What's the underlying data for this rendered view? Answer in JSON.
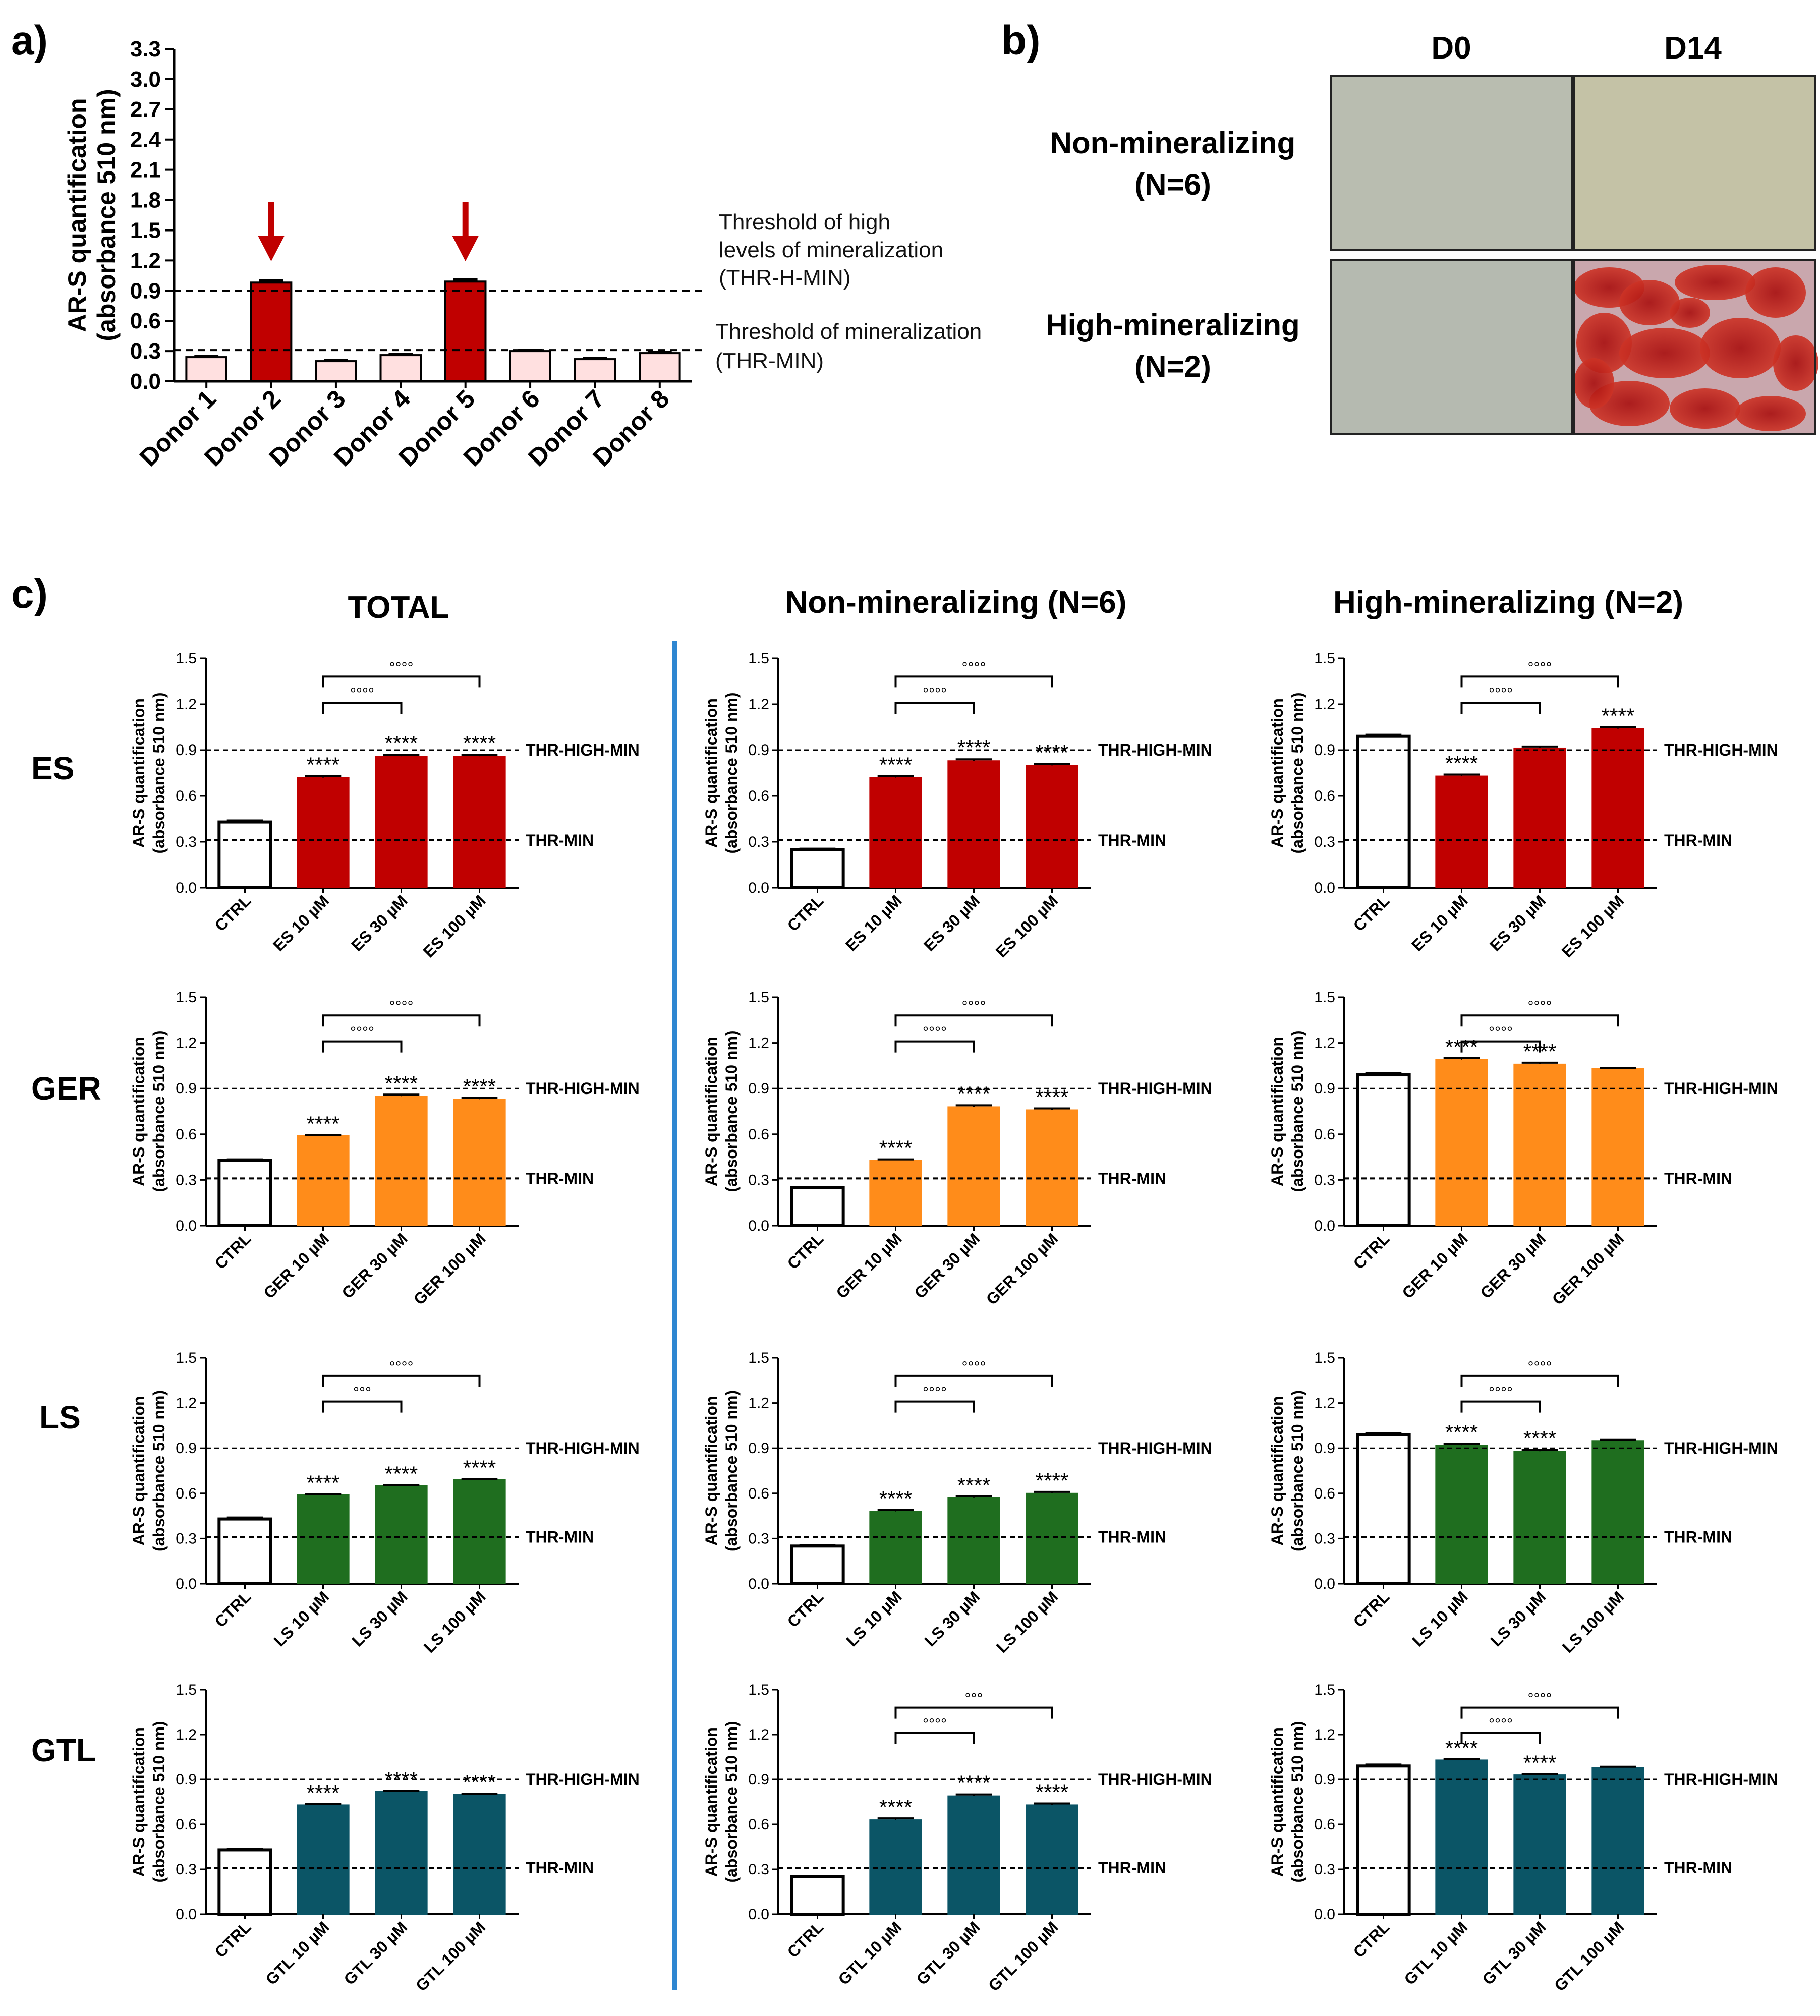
{
  "panel_labels": {
    "a": "a)",
    "b": "b)",
    "c": "c)"
  },
  "colors": {
    "ES": "#c00000",
    "GER": "#ff8c1a",
    "LS": "#1f6e1f",
    "GTL": "#0b5566",
    "donor_high": "#c00000",
    "donor_low": "#ffe0e0",
    "arrow": "#c00000",
    "divider": "#2e86d1"
  },
  "panel_b": {
    "col_headers": [
      "D0",
      "D14"
    ],
    "row_labels": [
      {
        "line1": "Non-mineralizing",
        "line2": "(N=6)"
      },
      {
        "line1": "High-mineralizing",
        "line2": "(N=2)"
      }
    ]
  },
  "panel_c": {
    "column_titles": [
      "TOTAL",
      "Non-mineralizing (N=6)",
      "High-mineralizing (N=2)"
    ],
    "row_labels": [
      "ES",
      "GER",
      "LS",
      "GTL"
    ]
  },
  "chart_data": [
    {
      "id": "a",
      "type": "bar",
      "title": "",
      "ylabel_line1": "AR-S quantification",
      "ylabel_line2": "(absorbance 510 nm)",
      "ylim": [
        0,
        3.3
      ],
      "yticks": [
        "0.0",
        "0.3",
        "0.6",
        "0.9",
        "1.2",
        "1.5",
        "1.8",
        "2.1",
        "2.4",
        "2.7",
        "3.0",
        "3.3"
      ],
      "categories": [
        "Donor 1",
        "Donor 2",
        "Donor 3",
        "Donor 4",
        "Donor 5",
        "Donor 6",
        "Donor 7",
        "Donor 8"
      ],
      "values": [
        0.24,
        0.98,
        0.2,
        0.26,
        0.99,
        0.3,
        0.22,
        0.28
      ],
      "errors": [
        0.01,
        0.02,
        0.01,
        0.01,
        0.02,
        0.01,
        0.01,
        0.01
      ],
      "highlight": [
        false,
        true,
        false,
        false,
        true,
        false,
        false,
        false
      ],
      "arrows_on": [
        "Donor 2",
        "Donor 5"
      ],
      "thresholds": [
        {
          "value": 0.9,
          "lines": [
            "Threshold of high",
            "levels of mineralization",
            "(THR-H-MIN)"
          ]
        },
        {
          "value": 0.31,
          "lines": [
            "Threshold of mineralization",
            "(THR-MIN)"
          ]
        }
      ]
    },
    {
      "id": "es-total",
      "type": "bar",
      "group": "ES",
      "ylabel_line1": "AR-S quantification",
      "ylabel_line2": "(absorbance 510 nm)",
      "ylim": [
        0,
        1.5
      ],
      "yticks": [
        "0.0",
        "0.3",
        "0.6",
        "0.9",
        "1.2",
        "1.5"
      ],
      "categories": [
        "CTRL",
        "ES 10 µM",
        "ES 30 µM",
        "ES 100 µM"
      ],
      "values": [
        0.43,
        0.72,
        0.86,
        0.86
      ],
      "errors": [
        0.01,
        0.01,
        0.01,
        0.01
      ],
      "stars": [
        "",
        "****",
        "****",
        "****"
      ],
      "brackets": [
        {
          "from": 1,
          "to": 2,
          "label": "°°°°"
        },
        {
          "from": 1,
          "to": 3,
          "label": "°°°°"
        }
      ],
      "thresholds": [
        {
          "value": 0.9,
          "label": "THR-HIGH-MIN"
        },
        {
          "value": 0.31,
          "label": "THR-MIN"
        }
      ]
    },
    {
      "id": "es-non",
      "type": "bar",
      "group": "ES",
      "ylabel_line1": "AR-S quantification",
      "ylabel_line2": "(absorbance 510 nm)",
      "ylim": [
        0,
        1.5
      ],
      "yticks": [
        "0.0",
        "0.3",
        "0.6",
        "0.9",
        "1.2",
        "1.5"
      ],
      "categories": [
        "CTRL",
        "ES 10 µM",
        "ES 30 µM",
        "ES 100 µM"
      ],
      "values": [
        0.25,
        0.72,
        0.83,
        0.8
      ],
      "errors": [
        0.005,
        0.01,
        0.01,
        0.01
      ],
      "stars": [
        "",
        "****",
        "****",
        "****"
      ],
      "brackets": [
        {
          "from": 1,
          "to": 2,
          "label": "°°°°"
        },
        {
          "from": 1,
          "to": 3,
          "label": "°°°°"
        }
      ],
      "thresholds": [
        {
          "value": 0.9,
          "label": "THR-HIGH-MIN"
        },
        {
          "value": 0.31,
          "label": "THR-MIN"
        }
      ]
    },
    {
      "id": "es-high",
      "type": "bar",
      "group": "ES",
      "ylabel_line1": "AR-S quantification",
      "ylabel_line2": "(absorbance 510 nm)",
      "ylim": [
        0,
        1.5
      ],
      "yticks": [
        "0.0",
        "0.3",
        "0.6",
        "0.9",
        "1.2",
        "1.5"
      ],
      "categories": [
        "CTRL",
        "ES 10 µM",
        "ES 30 µM",
        "ES 100 µM"
      ],
      "values": [
        0.99,
        0.73,
        0.91,
        1.04
      ],
      "errors": [
        0.01,
        0.01,
        0.01,
        0.01
      ],
      "stars": [
        "",
        "****",
        "",
        "****"
      ],
      "brackets": [
        {
          "from": 1,
          "to": 2,
          "label": "°°°°"
        },
        {
          "from": 1,
          "to": 3,
          "label": "°°°°"
        }
      ],
      "thresholds": [
        {
          "value": 0.9,
          "label": "THR-HIGH-MIN"
        },
        {
          "value": 0.31,
          "label": "THR-MIN"
        }
      ]
    },
    {
      "id": "ger-total",
      "type": "bar",
      "group": "GER",
      "ylabel_line1": "AR-S quantification",
      "ylabel_line2": "(absorbance 510 nm)",
      "ylim": [
        0,
        1.5
      ],
      "yticks": [
        "0.0",
        "0.3",
        "0.6",
        "0.9",
        "1.2",
        "1.5"
      ],
      "categories": [
        "CTRL",
        "GER 10 µM",
        "GER 30 µM",
        "GER 100 µM"
      ],
      "values": [
        0.43,
        0.59,
        0.85,
        0.83
      ],
      "errors": [
        0.005,
        0.005,
        0.01,
        0.01
      ],
      "stars": [
        "",
        "****",
        "****",
        "****"
      ],
      "brackets": [
        {
          "from": 1,
          "to": 2,
          "label": "°°°°"
        },
        {
          "from": 1,
          "to": 3,
          "label": "°°°°"
        }
      ],
      "thresholds": [
        {
          "value": 0.9,
          "label": "THR-HIGH-MIN"
        },
        {
          "value": 0.31,
          "label": "THR-MIN"
        }
      ]
    },
    {
      "id": "ger-non",
      "type": "bar",
      "group": "GER",
      "ylabel_line1": "AR-S quantification",
      "ylabel_line2": "(absorbance 510 nm)",
      "ylim": [
        0,
        1.5
      ],
      "yticks": [
        "0.0",
        "0.3",
        "0.6",
        "0.9",
        "1.2",
        "1.5"
      ],
      "categories": [
        "CTRL",
        "GER 10 µM",
        "GER 30 µM",
        "GER 100 µM"
      ],
      "values": [
        0.25,
        0.43,
        0.78,
        0.76
      ],
      "errors": [
        0.005,
        0.005,
        0.01,
        0.01
      ],
      "stars": [
        "",
        "****",
        "****",
        "****"
      ],
      "brackets": [
        {
          "from": 1,
          "to": 2,
          "label": "°°°°"
        },
        {
          "from": 1,
          "to": 3,
          "label": "°°°°"
        }
      ],
      "thresholds": [
        {
          "value": 0.9,
          "label": "THR-HIGH-MIN"
        },
        {
          "value": 0.31,
          "label": "THR-MIN"
        }
      ]
    },
    {
      "id": "ger-high",
      "type": "bar",
      "group": "GER",
      "ylabel_line1": "AR-S quantification",
      "ylabel_line2": "(absorbance 510 nm)",
      "ylim": [
        0,
        1.5
      ],
      "yticks": [
        "0.0",
        "0.3",
        "0.6",
        "0.9",
        "1.2",
        "1.5"
      ],
      "categories": [
        "CTRL",
        "GER 10 µM",
        "GER 30 µM",
        "GER 100 µM"
      ],
      "values": [
        0.99,
        1.09,
        1.06,
        1.03
      ],
      "errors": [
        0.01,
        0.01,
        0.01,
        0.005
      ],
      "stars": [
        "",
        "****",
        "****",
        ""
      ],
      "brackets": [
        {
          "from": 1,
          "to": 2,
          "label": "°°°°"
        },
        {
          "from": 1,
          "to": 3,
          "label": "°°°°"
        }
      ],
      "thresholds": [
        {
          "value": 0.9,
          "label": "THR-HIGH-MIN"
        },
        {
          "value": 0.31,
          "label": "THR-MIN"
        }
      ]
    },
    {
      "id": "ls-total",
      "type": "bar",
      "group": "LS",
      "ylabel_line1": "AR-S quantification",
      "ylabel_line2": "(absorbance 510 nm)",
      "ylim": [
        0,
        1.5
      ],
      "yticks": [
        "0.0",
        "0.3",
        "0.6",
        "0.9",
        "1.2",
        "1.5"
      ],
      "categories": [
        "CTRL",
        "LS 10 µM",
        "LS 30 µM",
        "LS 100 µM"
      ],
      "values": [
        0.43,
        0.59,
        0.65,
        0.69
      ],
      "errors": [
        0.01,
        0.005,
        0.005,
        0.005
      ],
      "stars": [
        "",
        "****",
        "****",
        "****"
      ],
      "brackets": [
        {
          "from": 1,
          "to": 2,
          "label": "°°°"
        },
        {
          "from": 1,
          "to": 3,
          "label": "°°°°"
        }
      ],
      "thresholds": [
        {
          "value": 0.9,
          "label": "THR-HIGH-MIN"
        },
        {
          "value": 0.31,
          "label": "THR-MIN"
        }
      ]
    },
    {
      "id": "ls-non",
      "type": "bar",
      "group": "LS",
      "ylabel_line1": "AR-S quantification",
      "ylabel_line2": "(absorbance 510 nm)",
      "ylim": [
        0,
        1.5
      ],
      "yticks": [
        "0.0",
        "0.3",
        "0.6",
        "0.9",
        "1.2",
        "1.5"
      ],
      "categories": [
        "CTRL",
        "LS 10 µM",
        "LS 30 µM",
        "LS 100 µM"
      ],
      "values": [
        0.25,
        0.48,
        0.57,
        0.6
      ],
      "errors": [
        0.005,
        0.01,
        0.01,
        0.01
      ],
      "stars": [
        "",
        "****",
        "****",
        "****"
      ],
      "brackets": [
        {
          "from": 1,
          "to": 2,
          "label": "°°°°"
        },
        {
          "from": 1,
          "to": 3,
          "label": "°°°°"
        }
      ],
      "thresholds": [
        {
          "value": 0.9,
          "label": "THR-HIGH-MIN"
        },
        {
          "value": 0.31,
          "label": "THR-MIN"
        }
      ]
    },
    {
      "id": "ls-high",
      "type": "bar",
      "group": "LS",
      "ylabel_line1": "AR-S quantification",
      "ylabel_line2": "(absorbance 510 nm)",
      "ylim": [
        0,
        1.5
      ],
      "yticks": [
        "0.0",
        "0.3",
        "0.6",
        "0.9",
        "1.2",
        "1.5"
      ],
      "categories": [
        "CTRL",
        "LS 10 µM",
        "LS 30 µM",
        "LS 100 µM"
      ],
      "values": [
        0.99,
        0.92,
        0.88,
        0.95
      ],
      "errors": [
        0.01,
        0.01,
        0.01,
        0.005
      ],
      "stars": [
        "",
        "****",
        "****",
        ""
      ],
      "brackets": [
        {
          "from": 1,
          "to": 2,
          "label": "°°°°"
        },
        {
          "from": 1,
          "to": 3,
          "label": "°°°°"
        }
      ],
      "thresholds": [
        {
          "value": 0.9,
          "label": "THR-HIGH-MIN"
        },
        {
          "value": 0.31,
          "label": "THR-MIN"
        }
      ]
    },
    {
      "id": "gtl-total",
      "type": "bar",
      "group": "GTL",
      "ylabel_line1": "AR-S quantification",
      "ylabel_line2": "(absorbance 510 nm)",
      "ylim": [
        0,
        1.5
      ],
      "yticks": [
        "0.0",
        "0.3",
        "0.6",
        "0.9",
        "1.2",
        "1.5"
      ],
      "categories": [
        "CTRL",
        "GTL 10 µM",
        "GTL 30 µM",
        "GTL 100 µM"
      ],
      "values": [
        0.43,
        0.73,
        0.82,
        0.8
      ],
      "errors": [
        0.005,
        0.005,
        0.005,
        0.005
      ],
      "stars": [
        "",
        "****",
        "****",
        "****"
      ],
      "brackets": [],
      "thresholds": [
        {
          "value": 0.9,
          "label": "THR-HIGH-MIN"
        },
        {
          "value": 0.31,
          "label": "THR-MIN"
        }
      ]
    },
    {
      "id": "gtl-non",
      "type": "bar",
      "group": "GTL",
      "ylabel_line1": "AR-S quantification",
      "ylabel_line2": "(absorbance 510 nm)",
      "ylim": [
        0,
        1.5
      ],
      "yticks": [
        "0.0",
        "0.3",
        "0.6",
        "0.9",
        "1.2",
        "1.5"
      ],
      "categories": [
        "CTRL",
        "GTL 10 µM",
        "GTL 30 µM",
        "GTL 100 µM"
      ],
      "values": [
        0.25,
        0.63,
        0.79,
        0.73
      ],
      "errors": [
        0.005,
        0.01,
        0.01,
        0.01
      ],
      "stars": [
        "",
        "****",
        "****",
        "****"
      ],
      "brackets": [
        {
          "from": 1,
          "to": 2,
          "label": "°°°°"
        },
        {
          "from": 1,
          "to": 3,
          "label": "°°°"
        }
      ],
      "thresholds": [
        {
          "value": 0.9,
          "label": "THR-HIGH-MIN"
        },
        {
          "value": 0.31,
          "label": "THR-MIN"
        }
      ]
    },
    {
      "id": "gtl-high",
      "type": "bar",
      "group": "GTL",
      "ylabel_line1": "AR-S quantification",
      "ylabel_line2": "(absorbance 510 nm)",
      "ylim": [
        0,
        1.5
      ],
      "yticks": [
        "0.0",
        "0.3",
        "0.6",
        "0.9",
        "1.2",
        "1.5"
      ],
      "categories": [
        "CTRL",
        "GTL 10 µM",
        "GTL 30 µM",
        "GTL 100 µM"
      ],
      "values": [
        0.99,
        1.03,
        0.93,
        0.98
      ],
      "errors": [
        0.01,
        0.005,
        0.005,
        0.005
      ],
      "stars": [
        "",
        "****",
        "****",
        ""
      ],
      "brackets": [
        {
          "from": 1,
          "to": 2,
          "label": "°°°°"
        },
        {
          "from": 1,
          "to": 3,
          "label": "°°°°"
        }
      ],
      "thresholds": [
        {
          "value": 0.9,
          "label": "THR-HIGH-MIN"
        },
        {
          "value": 0.31,
          "label": "THR-MIN"
        }
      ]
    }
  ]
}
